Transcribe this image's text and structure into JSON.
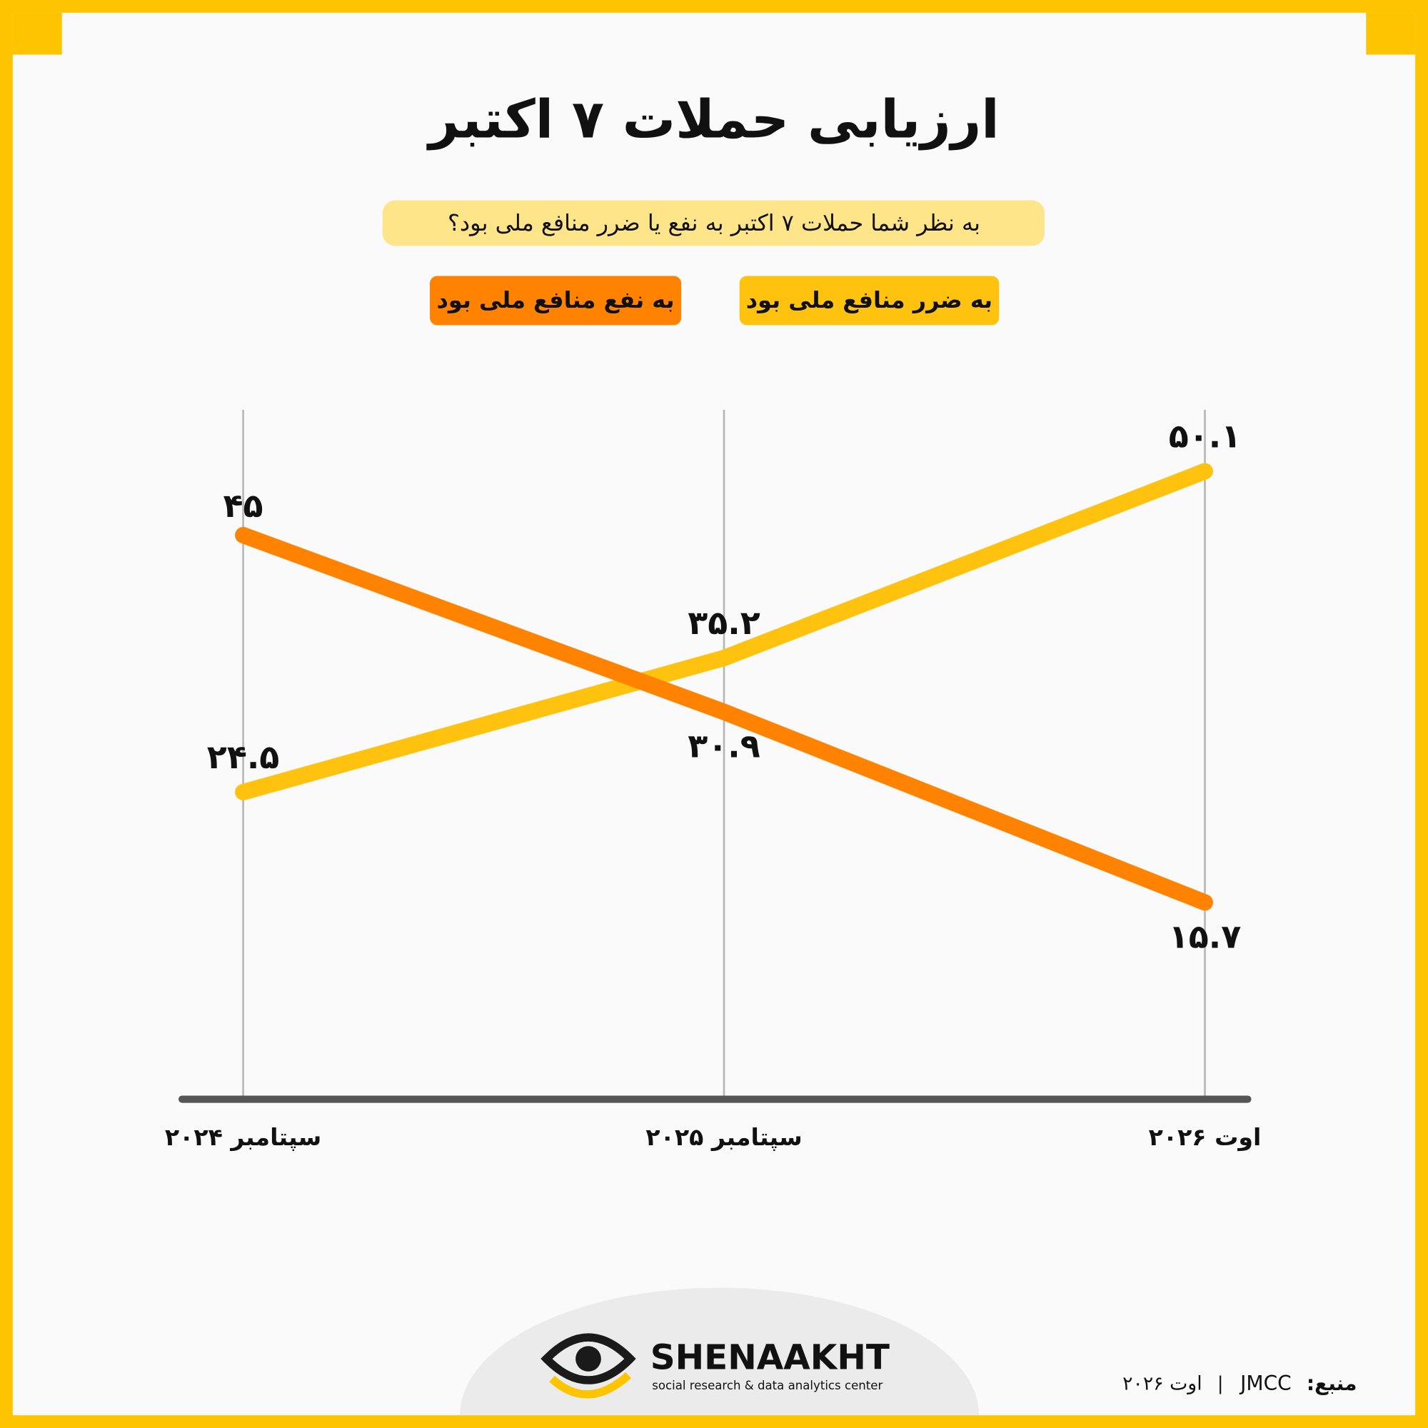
{
  "chart_data": {
    "type": "line",
    "title": "ارزیابی حملات ۷ اکتبر",
    "subtitle": "به نظر شما حملات ۷ اکتبر به نفع یا ضرر منافع ملی بود؟",
    "categories": [
      "سپتامبر ۲۰۲۴",
      "سپتامبر ۲۰۲۵",
      "اوت ۲۰۲۶"
    ],
    "series": [
      {
        "name": "به ضرر منافع ملی بود",
        "color": "#FFC20E",
        "values": [
          24.5,
          35.2,
          50.1
        ],
        "value_labels": [
          "۲۴.۵",
          "۳۵.۲",
          "۵۰.۱"
        ]
      },
      {
        "name": "به نفع منافع ملی بود",
        "color": "#FF8200",
        "values": [
          45,
          30.9,
          15.7
        ],
        "value_labels": [
          "۴۵",
          "۳۰.۹",
          "۱۵.۷"
        ]
      }
    ],
    "ylim": [
      0,
      55
    ],
    "grid": true,
    "source_label": "منبع:",
    "source": "JMCC",
    "source_date": "اوت ۲۰۲۶",
    "logo_name": "SHENAAKHT",
    "logo_tagline": "social research & data analytics center"
  }
}
